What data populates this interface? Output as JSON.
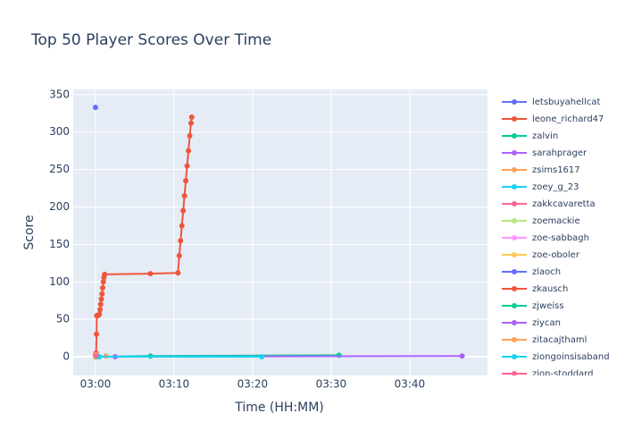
{
  "chart_data": {
    "type": "line",
    "title": "Top 50 Player Scores Over Time",
    "x_label": "Time (HH:MM)",
    "y_label": "Score",
    "xlim": [
      "02:57:10",
      "03:49:54"
    ],
    "xticks": [
      "03:00",
      "03:10",
      "03:20",
      "03:30",
      "03:40"
    ],
    "ylim": [
      -25,
      357
    ],
    "yticks": [
      0,
      50,
      100,
      150,
      200,
      250,
      300,
      350
    ],
    "grid": true,
    "series": [
      {
        "name": "letsbuyahellcat",
        "color": "#636efa",
        "x": [
          "03:00:00"
        ],
        "values": [
          333
        ]
      },
      {
        "name": "leone_richard47",
        "color": "#EF553B",
        "x": [
          "03:00:05",
          "03:00:08",
          "03:00:10",
          "03:00:20",
          "03:00:30",
          "03:00:35",
          "03:00:40",
          "03:00:45",
          "03:00:50",
          "03:00:55",
          "03:01:00",
          "03:01:05",
          "03:01:10",
          "03:07:00",
          "03:10:30",
          "03:10:40",
          "03:10:50",
          "03:11:00",
          "03:11:10",
          "03:11:20",
          "03:11:30",
          "03:11:40",
          "03:11:50",
          "03:12:00",
          "03:12:10",
          "03:12:15"
        ],
        "values": [
          5,
          30,
          55,
          55,
          57,
          63,
          70,
          77,
          84,
          92,
          100,
          106,
          110,
          111,
          112,
          135,
          155,
          175,
          195,
          215,
          235,
          255,
          275,
          295,
          312,
          320
        ]
      },
      {
        "name": "zalvin",
        "color": "#00cc96",
        "x": [
          "03:00:00",
          "03:07:00",
          "03:31:00"
        ],
        "values": [
          0,
          1,
          2
        ]
      },
      {
        "name": "sarahprager",
        "color": "#ab63fa",
        "x": [
          "03:02:30",
          "03:46:40"
        ],
        "values": [
          0,
          1
        ]
      },
      {
        "name": "zsims1617",
        "color": "#FFA15A",
        "x": [
          "03:01:20"
        ],
        "values": [
          1
        ]
      },
      {
        "name": "zoey_g_23",
        "color": "#19d3f3",
        "x": [
          "03:00:30",
          "03:21:10"
        ],
        "values": [
          0,
          0
        ]
      },
      {
        "name": "zakkcavaretta",
        "color": "#FF6692",
        "x": [
          "03:00:00"
        ],
        "values": [
          2
        ]
      },
      {
        "name": "zoemackie",
        "color": "#B6E880",
        "x": [
          "03:00:05"
        ],
        "values": [
          1
        ]
      },
      {
        "name": "zoe-sabbagh",
        "color": "#FF97FF",
        "x": [
          "03:00:02"
        ],
        "values": [
          0
        ]
      },
      {
        "name": "zoe-oboler",
        "color": "#FECB52",
        "x": [
          "03:00:00"
        ],
        "values": [
          -1
        ]
      },
      {
        "name": "zlaoch",
        "color": "#636efa",
        "x": [
          "03:00:03"
        ],
        "values": [
          3
        ]
      },
      {
        "name": "zkausch",
        "color": "#EF553B",
        "x": [
          "03:00:01"
        ],
        "values": [
          4
        ]
      },
      {
        "name": "zjweiss",
        "color": "#00cc96",
        "x": [
          "03:00:04"
        ],
        "values": [
          1
        ]
      },
      {
        "name": "ziycan",
        "color": "#ab63fa",
        "x": [
          "03:00:06"
        ],
        "values": [
          2
        ]
      },
      {
        "name": "zitacajthaml",
        "color": "#FFA15A",
        "x": [
          "03:00:02"
        ],
        "values": [
          3
        ]
      },
      {
        "name": "ziongoinsisaband",
        "color": "#19d3f3",
        "x": [
          "03:00:07"
        ],
        "values": [
          0
        ]
      },
      {
        "name": "zion-stoddard",
        "color": "#FF6692",
        "x": [
          "03:00:03"
        ],
        "values": [
          1
        ]
      }
    ]
  }
}
